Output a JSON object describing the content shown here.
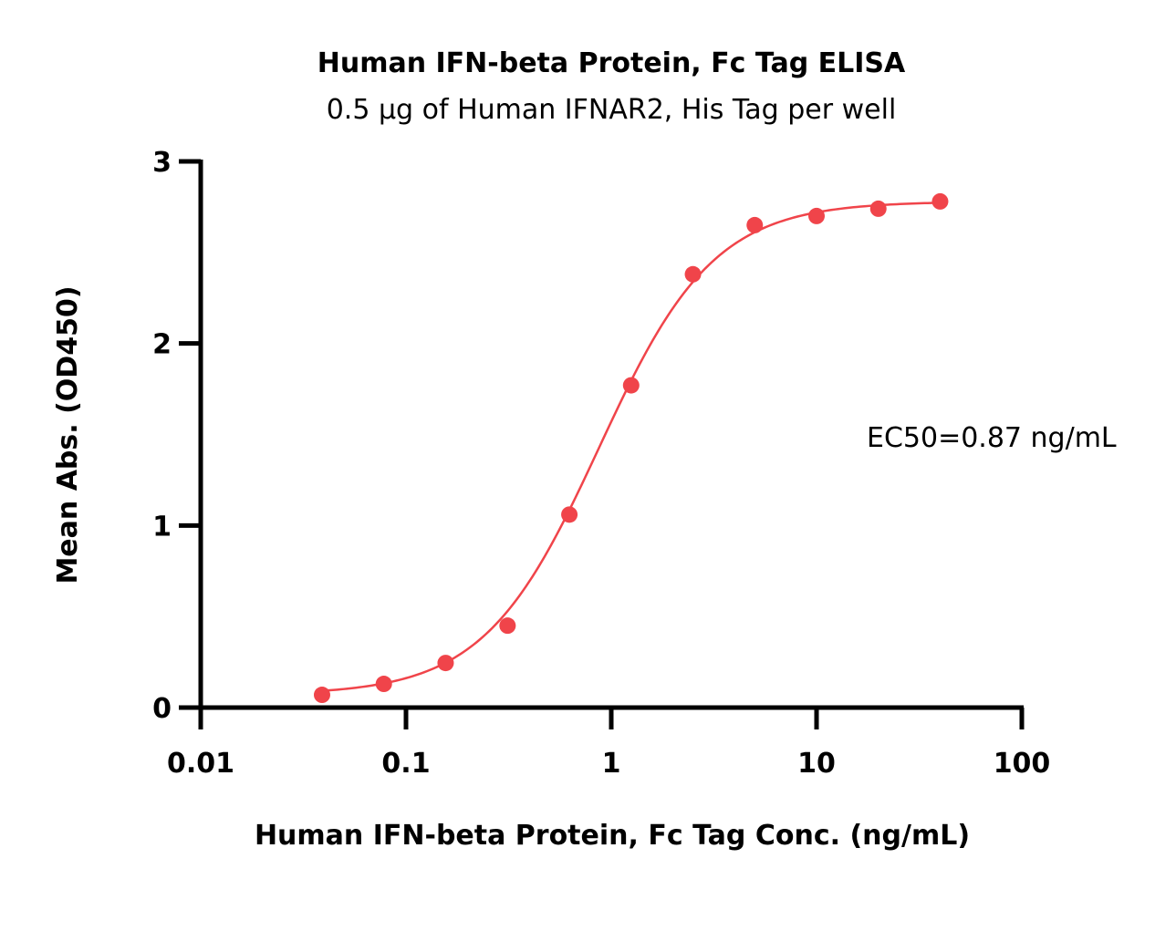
{
  "chart_data": {
    "type": "scatter",
    "title": "Human IFN-beta Protein, Fc Tag ELISA",
    "subtitle": "0.5 µg of Human IFNAR2, His Tag per well",
    "xlabel": "Human IFN-beta Protein, Fc Tag Conc. (ng/mL)",
    "ylabel": "Mean Abs. (OD450)",
    "x_scale": "log",
    "xlim": [
      0.01,
      100
    ],
    "ylim": [
      0,
      3
    ],
    "x_ticks": [
      "0.01",
      "0.1",
      "1",
      "10",
      "100"
    ],
    "y_ticks": [
      "0",
      "1",
      "2",
      "3"
    ],
    "series": [
      {
        "x": [
          0.039,
          0.078,
          0.156,
          0.3125,
          0.625,
          1.25,
          2.5,
          5,
          10,
          20,
          40
        ],
        "y": [
          0.07,
          0.13,
          0.245,
          0.45,
          1.06,
          1.77,
          2.38,
          2.65,
          2.7,
          2.74,
          2.78
        ]
      }
    ],
    "fit_curve": {
      "bottom": 0.07,
      "top": 2.78,
      "ec50": 0.87,
      "hill": 1.55
    },
    "annotation": "EC50=0.87 ng/mL",
    "marker_color": "#f0444a",
    "line_color": "#f0444a",
    "grid": false
  }
}
